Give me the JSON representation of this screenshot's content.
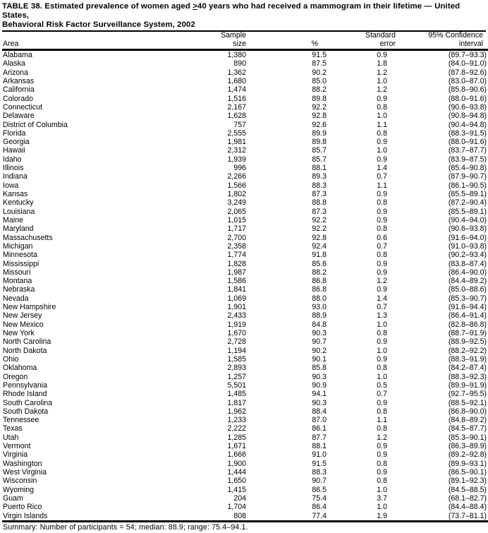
{
  "table": {
    "title": {
      "prefix": "TABLE 38. Estimated prevalence of women aged ",
      "geq_symbol": ">",
      "suffix": "40 years who had received a mammogram in their lifetime — United States,",
      "line2": "Behavioral Risk Factor Surveillance System, 2002"
    },
    "columns": {
      "area": "Area",
      "sample_line1": "Sample",
      "sample_line2": "size",
      "percent": "%",
      "se_line1": "Standard",
      "se_line2": "error",
      "ci_line1": "95% Confidence",
      "ci_line2": "interval"
    },
    "rows": [
      {
        "area": "Alabama",
        "sample_size": "1,380",
        "percent": "91.5",
        "standard_error": "0.9",
        "confidence_interval": "(89.7–93.3)"
      },
      {
        "area": "Alaska",
        "sample_size": "890",
        "percent": "87.5",
        "standard_error": "1.8",
        "confidence_interval": "(84.0–91.0)"
      },
      {
        "area": "Arizona",
        "sample_size": "1,362",
        "percent": "90.2",
        "standard_error": "1.2",
        "confidence_interval": "(87.8–92.6)"
      },
      {
        "area": "Arkansas",
        "sample_size": "1,680",
        "percent": "85.0",
        "standard_error": "1.0",
        "confidence_interval": "(83.0–87.0)"
      },
      {
        "area": "California",
        "sample_size": "1,474",
        "percent": "88.2",
        "standard_error": "1.2",
        "confidence_interval": "(85.8–90.6)"
      },
      {
        "area": "Colorado",
        "sample_size": "1,516",
        "percent": "89.8",
        "standard_error": "0.9",
        "confidence_interval": "(88.0–91.6)"
      },
      {
        "area": "Connecticut",
        "sample_size": "2,167",
        "percent": "92.2",
        "standard_error": "0.8",
        "confidence_interval": "(90.6–93.8)"
      },
      {
        "area": "Delaware",
        "sample_size": "1,628",
        "percent": "92.8",
        "standard_error": "1.0",
        "confidence_interval": "(90.8–94.8)"
      },
      {
        "area": "District of Columbia",
        "sample_size": "757",
        "percent": "92.6",
        "standard_error": "1.1",
        "confidence_interval": "(90.4–94.8)"
      },
      {
        "area": "Florida",
        "sample_size": "2,555",
        "percent": "89.9",
        "standard_error": "0.8",
        "confidence_interval": "(88.3–91.5)"
      },
      {
        "area": "Georgia",
        "sample_size": "1,981",
        "percent": "89.8",
        "standard_error": "0.9",
        "confidence_interval": "(88.0–91.6)"
      },
      {
        "area": "Hawaii",
        "sample_size": "2,312",
        "percent": "85.7",
        "standard_error": "1.0",
        "confidence_interval": "(83.7–87.7)"
      },
      {
        "area": "Idaho",
        "sample_size": "1,939",
        "percent": "85.7",
        "standard_error": "0.9",
        "confidence_interval": "(83.9–87.5)"
      },
      {
        "area": "Illinois",
        "sample_size": "996",
        "percent": "88.1",
        "standard_error": "1.4",
        "confidence_interval": "(85.4–90.8)"
      },
      {
        "area": "Indiana",
        "sample_size": "2,266",
        "percent": "89.3",
        "standard_error": "0.7",
        "confidence_interval": "(87.9–90.7)"
      },
      {
        "area": "Iowa",
        "sample_size": "1,566",
        "percent": "88.3",
        "standard_error": "1.1",
        "confidence_interval": "(86.1–90.5)"
      },
      {
        "area": "Kansas",
        "sample_size": "1,802",
        "percent": "87.3",
        "standard_error": "0.9",
        "confidence_interval": "(85.5–89.1)"
      },
      {
        "area": "Kentucky",
        "sample_size": "3,249",
        "percent": "88.8",
        "standard_error": "0.8",
        "confidence_interval": "(87.2–90.4)"
      },
      {
        "area": "Louisiana",
        "sample_size": "2,065",
        "percent": "87.3",
        "standard_error": "0.9",
        "confidence_interval": "(85.5–89.1)"
      },
      {
        "area": "Maine",
        "sample_size": "1,015",
        "percent": "92.2",
        "standard_error": "0.9",
        "confidence_interval": "(90.4–94.0)"
      },
      {
        "area": "Maryland",
        "sample_size": "1,717",
        "percent": "92.2",
        "standard_error": "0.8",
        "confidence_interval": "(90.6–93.8)"
      },
      {
        "area": "Massachusetts",
        "sample_size": "2,700",
        "percent": "92.8",
        "standard_error": "0.6",
        "confidence_interval": "(91.6–94.0)"
      },
      {
        "area": "Michigan",
        "sample_size": "2,358",
        "percent": "92.4",
        "standard_error": "0.7",
        "confidence_interval": "(91.0–93.8)"
      },
      {
        "area": "Minnesota",
        "sample_size": "1,774",
        "percent": "91.8",
        "standard_error": "0.8",
        "confidence_interval": "(90.2–93.4)"
      },
      {
        "area": "Mississippi",
        "sample_size": "1,828",
        "percent": "85.6",
        "standard_error": "0.9",
        "confidence_interval": "(83.8–87.4)"
      },
      {
        "area": "Missouri",
        "sample_size": "1,987",
        "percent": "88.2",
        "standard_error": "0.9",
        "confidence_interval": "(86.4–90.0)"
      },
      {
        "area": "Montana",
        "sample_size": "1,586",
        "percent": "86.8",
        "standard_error": "1.2",
        "confidence_interval": "(84.4–89.2)"
      },
      {
        "area": "Nebraska",
        "sample_size": "1,841",
        "percent": "86.8",
        "standard_error": "0.9",
        "confidence_interval": "(85.0–88.6)"
      },
      {
        "area": "Nevada",
        "sample_size": "1,069",
        "percent": "88.0",
        "standard_error": "1.4",
        "confidence_interval": "(85.3–90.7)"
      },
      {
        "area": "New Hampshire",
        "sample_size": "1,901",
        "percent": "93.0",
        "standard_error": "0.7",
        "confidence_interval": "(91.6–94.4)"
      },
      {
        "area": "New Jersey",
        "sample_size": "2,433",
        "percent": "88.9",
        "standard_error": "1.3",
        "confidence_interval": "(86.4–91.4)"
      },
      {
        "area": "New Mexico",
        "sample_size": "1,919",
        "percent": "84.8",
        "standard_error": "1.0",
        "confidence_interval": "(82.8–86.8)"
      },
      {
        "area": "New York",
        "sample_size": "1,670",
        "percent": "90.3",
        "standard_error": "0.8",
        "confidence_interval": "(88.7–91.9)"
      },
      {
        "area": "North Carolina",
        "sample_size": "2,728",
        "percent": "90.7",
        "standard_error": "0.9",
        "confidence_interval": "(88.9–92.5)"
      },
      {
        "area": "North Dakota",
        "sample_size": "1,194",
        "percent": "90.2",
        "standard_error": "1.0",
        "confidence_interval": "(88.2–92.2)"
      },
      {
        "area": "Ohio",
        "sample_size": "1,585",
        "percent": "90.1",
        "standard_error": "0.9",
        "confidence_interval": "(88.3–91.9)"
      },
      {
        "area": "Oklahoma",
        "sample_size": "2,893",
        "percent": "85.8",
        "standard_error": "0.8",
        "confidence_interval": "(84.2–87.4)"
      },
      {
        "area": "Oregon",
        "sample_size": "1,257",
        "percent": "90.3",
        "standard_error": "1.0",
        "confidence_interval": "(88.3–92.3)"
      },
      {
        "area": "Pennsylvania",
        "sample_size": "5,501",
        "percent": "90.9",
        "standard_error": "0.5",
        "confidence_interval": "(89.9–91.9)"
      },
      {
        "area": "Rhode Island",
        "sample_size": "1,485",
        "percent": "94.1",
        "standard_error": "0.7",
        "confidence_interval": "(92.7–95.5)"
      },
      {
        "area": "South Carolina",
        "sample_size": "1,817",
        "percent": "90.3",
        "standard_error": "0.9",
        "confidence_interval": "(88.5–92.1)"
      },
      {
        "area": "South Dakota",
        "sample_size": "1,962",
        "percent": "88.4",
        "standard_error": "0.8",
        "confidence_interval": "(86.8–90.0)"
      },
      {
        "area": "Tennessee",
        "sample_size": "1,233",
        "percent": "87.0",
        "standard_error": "1.1",
        "confidence_interval": "(84.8–89.2)"
      },
      {
        "area": "Texas",
        "sample_size": "2,222",
        "percent": "86.1",
        "standard_error": "0.8",
        "confidence_interval": "(84.5–87.7)"
      },
      {
        "area": "Utah",
        "sample_size": "1,285",
        "percent": "87.7",
        "standard_error": "1.2",
        "confidence_interval": "(85.3–90.1)"
      },
      {
        "area": "Vermont",
        "sample_size": "1,671",
        "percent": "88.1",
        "standard_error": "0.9",
        "confidence_interval": "(86.3–89.9)"
      },
      {
        "area": "Virginia",
        "sample_size": "1,666",
        "percent": "91.0",
        "standard_error": "0.9",
        "confidence_interval": "(89.2–92.8)"
      },
      {
        "area": "Washington",
        "sample_size": "1,900",
        "percent": "91.5",
        "standard_error": "0.8",
        "confidence_interval": "(89.9–93.1)"
      },
      {
        "area": "West Virginia",
        "sample_size": "1,444",
        "percent": "88.3",
        "standard_error": "0.9",
        "confidence_interval": "(86.5–90.1)"
      },
      {
        "area": "Wisconsin",
        "sample_size": "1,650",
        "percent": "90.7",
        "standard_error": "0.8",
        "confidence_interval": "(89.1–92.3)"
      },
      {
        "area": "Wyoming",
        "sample_size": "1,415",
        "percent": "86.5",
        "standard_error": "1.0",
        "confidence_interval": "(84.5–88.5)"
      },
      {
        "area": "Guam",
        "sample_size": "204",
        "percent": "75.4",
        "standard_error": "3.7",
        "confidence_interval": "(68.1–82.7)"
      },
      {
        "area": "Puerto Rico",
        "sample_size": "1,704",
        "percent": "86.4",
        "standard_error": "1.0",
        "confidence_interval": "(84.4–88.4)"
      },
      {
        "area": "Virgin Islands",
        "sample_size": "808",
        "percent": "77.4",
        "standard_error": "1.9",
        "confidence_interval": "(73.7–81.1)"
      }
    ],
    "summary": "Summary: Number of participants = 54; median: 88.9; range: 75.4–94.1."
  }
}
